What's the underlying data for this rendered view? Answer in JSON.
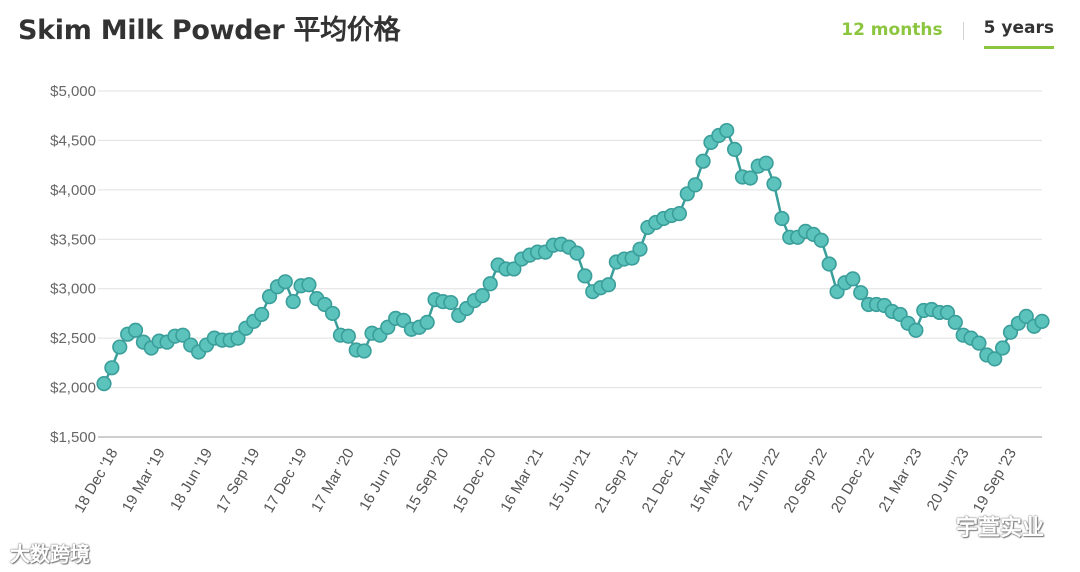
{
  "header": {
    "title": "Skim Milk Powder 平均价格",
    "tabs": [
      {
        "label": "12 months",
        "active": false
      },
      {
        "label": "5 years",
        "active": true
      }
    ]
  },
  "watermarks": {
    "left": "大数跨境",
    "right": "宇萱实业"
  },
  "colors": {
    "accent": "#8cc63f",
    "line": "#3a9e9a",
    "marker": "#5cc2bc",
    "grid": "#e0e0e0"
  },
  "chart_data": {
    "type": "line",
    "xlabel": "",
    "ylabel": "",
    "ylim": [
      1500,
      5000
    ],
    "yticks": [
      1500,
      2000,
      2500,
      3000,
      3500,
      4000,
      4500,
      5000
    ],
    "ytick_labels": [
      "$1,500",
      "$2,000",
      "$2,500",
      "$3,000",
      "$3,500",
      "$4,000",
      "$4,500",
      "$5,000"
    ],
    "xtick_labels": [
      {
        "index": 0,
        "label": "18 Dec '18"
      },
      {
        "index": 6,
        "label": "19 Mar '19"
      },
      {
        "index": 12,
        "label": "18 Jun '19"
      },
      {
        "index": 18,
        "label": "17 Sep '19"
      },
      {
        "index": 24,
        "label": "17 Dec '19"
      },
      {
        "index": 30,
        "label": "17 Mar '20"
      },
      {
        "index": 36,
        "label": "16 Jun '20"
      },
      {
        "index": 42,
        "label": "15 Sep '20"
      },
      {
        "index": 48,
        "label": "15 Dec '20"
      },
      {
        "index": 54,
        "label": "16 Mar '21"
      },
      {
        "index": 60,
        "label": "15 Jun '21"
      },
      {
        "index": 66,
        "label": "21 Sep '21"
      },
      {
        "index": 72,
        "label": "21 Dec '21"
      },
      {
        "index": 78,
        "label": "15 Mar '22"
      },
      {
        "index": 84,
        "label": "21 Jun '22"
      },
      {
        "index": 90,
        "label": "20 Sep '22"
      },
      {
        "index": 96,
        "label": "20 Dec '22"
      },
      {
        "index": 102,
        "label": "21 Mar '23"
      },
      {
        "index": 108,
        "label": "20 Jun '23"
      },
      {
        "index": 114,
        "label": "19 Sep '23"
      }
    ],
    "grid": true,
    "legend": "none",
    "series": [
      {
        "values": [
          2040,
          2200,
          2410,
          2540,
          2580,
          2460,
          2400,
          2470,
          2460,
          2520,
          2530,
          2430,
          2360,
          2430,
          2500,
          2480,
          2480,
          2500,
          2600,
          2670,
          2740,
          2920,
          3020,
          3070,
          2870,
          3030,
          3040,
          2900,
          2840,
          2750,
          2530,
          2520,
          2380,
          2370,
          2550,
          2530,
          2610,
          2700,
          2680,
          2590,
          2610,
          2660,
          2890,
          2870,
          2860,
          2730,
          2800,
          2880,
          2930,
          3050,
          3240,
          3200,
          3200,
          3300,
          3340,
          3370,
          3370,
          3440,
          3450,
          3420,
          3360,
          3130,
          2970,
          3010,
          3040,
          3270,
          3300,
          3310,
          3400,
          3620,
          3670,
          3710,
          3740,
          3760,
          3960,
          4050,
          4290,
          4480,
          4550,
          4600,
          4410,
          4130,
          4120,
          4240,
          4270,
          4060,
          3710,
          3520,
          3520,
          3580,
          3550,
          3490,
          3250,
          2970,
          3060,
          3100,
          2960,
          2840,
          2840,
          2830,
          2770,
          2740,
          2650,
          2580,
          2780,
          2790,
          2760,
          2760,
          2660,
          2530,
          2500,
          2450,
          2330,
          2290,
          2400,
          2560,
          2650,
          2720,
          2620,
          2670
        ]
      }
    ]
  }
}
